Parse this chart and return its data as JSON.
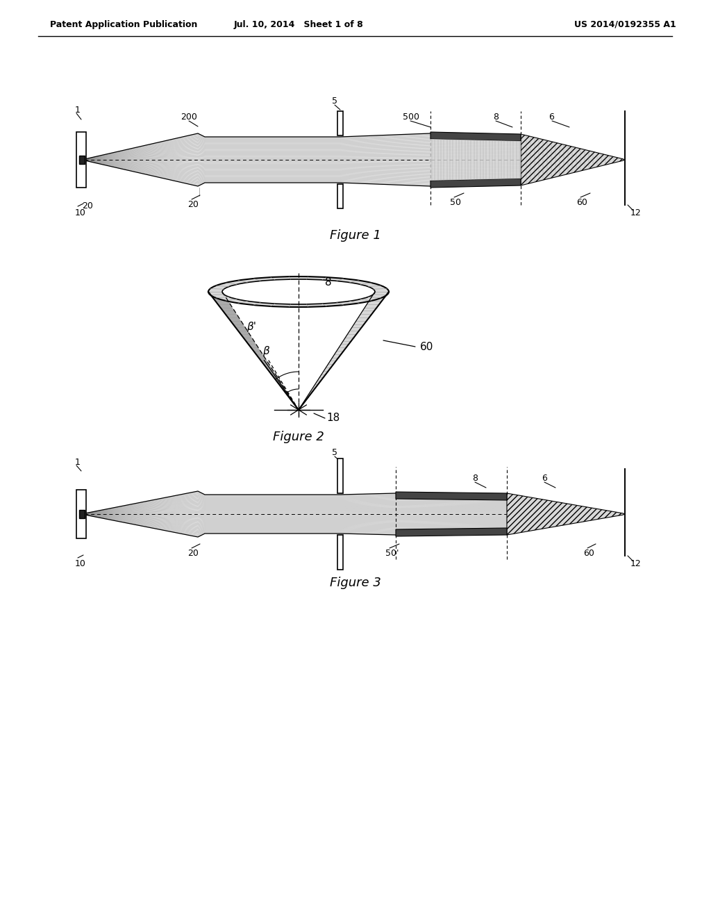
{
  "title_left": "Patent Application Publication",
  "title_mid": "Jul. 10, 2014   Sheet 1 of 8",
  "title_right": "US 2014/0192355 A1",
  "fig1_caption": "Figure 1",
  "fig2_caption": "Figure 2",
  "fig3_caption": "Figure 3",
  "background": "#ffffff",
  "line_color": "#000000",
  "gray_light": "#d8d8d8",
  "gray_mid": "#aaaaaa",
  "gray_dark": "#555555"
}
